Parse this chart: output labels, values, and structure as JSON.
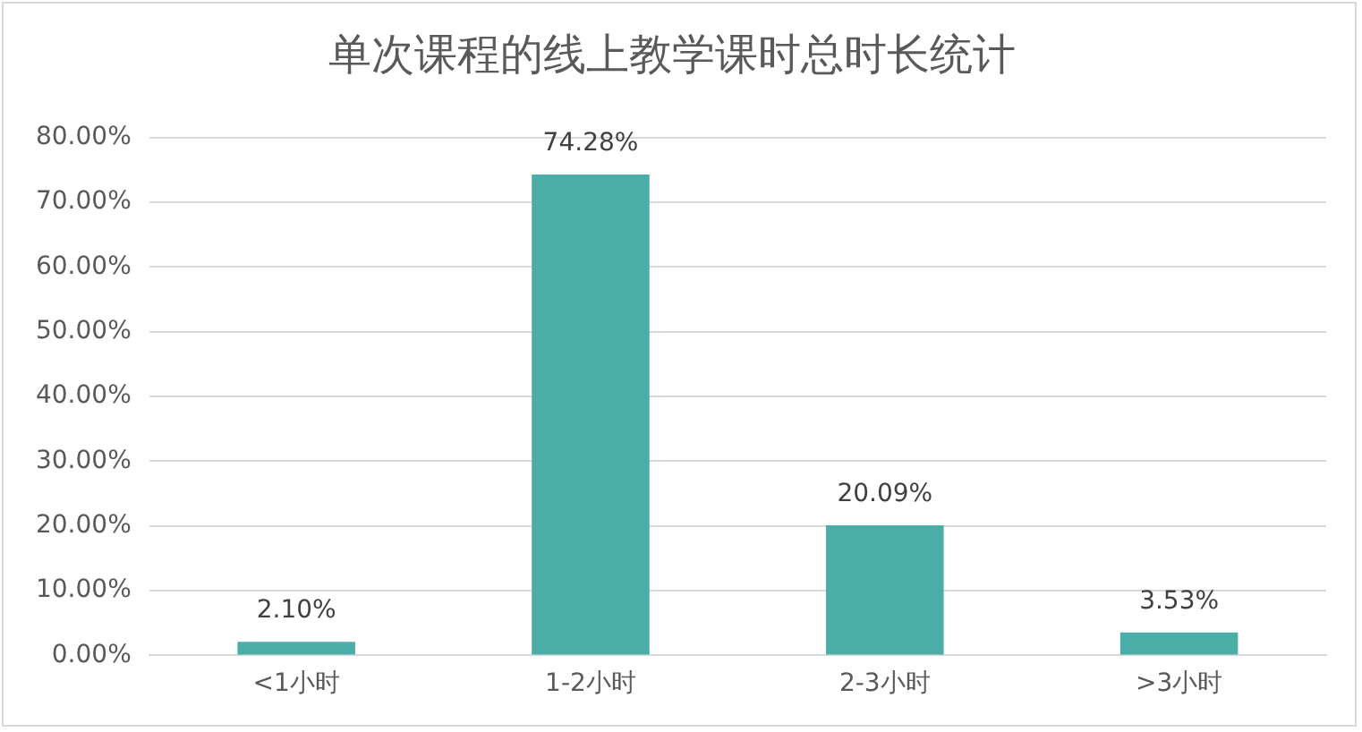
{
  "chart_data": {
    "type": "bar",
    "title": "单次课程的线上教学课时总时长统计",
    "categories": [
      "<1小时",
      "1-2小时",
      "2-3小时",
      ">3小时"
    ],
    "values": [
      2.1,
      74.28,
      20.09,
      3.53
    ],
    "value_labels": [
      "2.10%",
      "74.28%",
      "20.09%",
      "3.53%"
    ],
    "color": "#4bada7",
    "ylim": [
      0,
      80
    ],
    "yticks": [
      {
        "value": 0,
        "label": "0.00%"
      },
      {
        "value": 10,
        "label": "10.00%"
      },
      {
        "value": 20,
        "label": "20.00%"
      },
      {
        "value": 30,
        "label": "30.00%"
      },
      {
        "value": 40,
        "label": "40.00%"
      },
      {
        "value": 50,
        "label": "50.00%"
      },
      {
        "value": 60,
        "label": "60.00%"
      },
      {
        "value": 70,
        "label": "70.00%"
      },
      {
        "value": 80,
        "label": "80.00%"
      }
    ],
    "grid": "y",
    "legend": false
  }
}
